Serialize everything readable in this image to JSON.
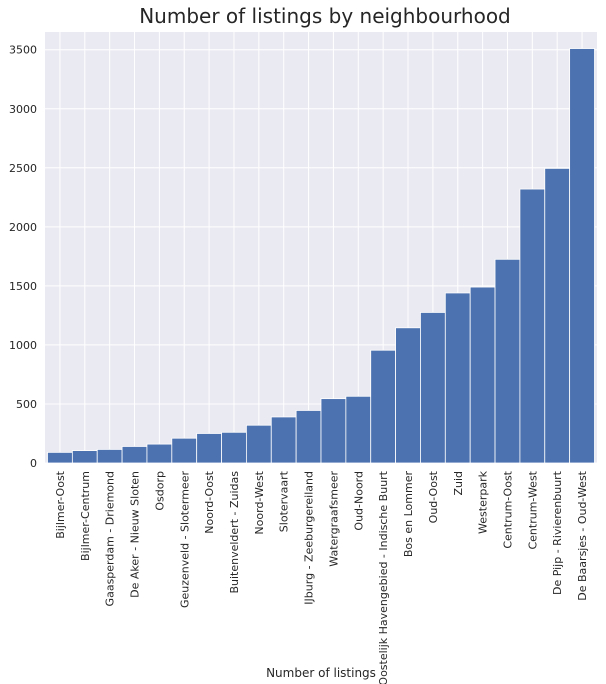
{
  "chart_data": {
    "type": "bar",
    "title": "Number of listings by neighbourhood",
    "xlabel": "Number of listings",
    "ylabel": "",
    "ylim": [
      0,
      3650
    ],
    "yticks": [
      0,
      500,
      1000,
      1500,
      2000,
      2500,
      3000,
      3500
    ],
    "grid": true,
    "bar_color": "#4c72b0",
    "background_color": "#eaeaf2",
    "categories": [
      "Bijlmer-Oost",
      "Bijlmer-Centrum",
      "Gaasperdam - Driemond",
      "De Aker - Nieuw Sloten",
      "Osdorp",
      "Geuzenveld - Slotermeer",
      "Noord-Oost",
      "Buitenveldert - Zuidas",
      "Noord-West",
      "Slotervaart",
      "IJburg - Zeeburgereiland",
      "Watergraafsmeer",
      "Oud-Noord",
      "Oostelijk Havengebied - Indische Buurt",
      "Bos en Lommer",
      "Oud-Oost",
      "Zuid",
      "Westerpark",
      "Centrum-Oost",
      "Centrum-West",
      "De Pijp - Rivierenbuurt",
      "De Baarsjes - Oud-West"
    ],
    "values": [
      90,
      105,
      115,
      140,
      160,
      210,
      250,
      260,
      320,
      390,
      445,
      545,
      565,
      955,
      1145,
      1275,
      1440,
      1490,
      1725,
      2320,
      2495,
      3510
    ]
  }
}
